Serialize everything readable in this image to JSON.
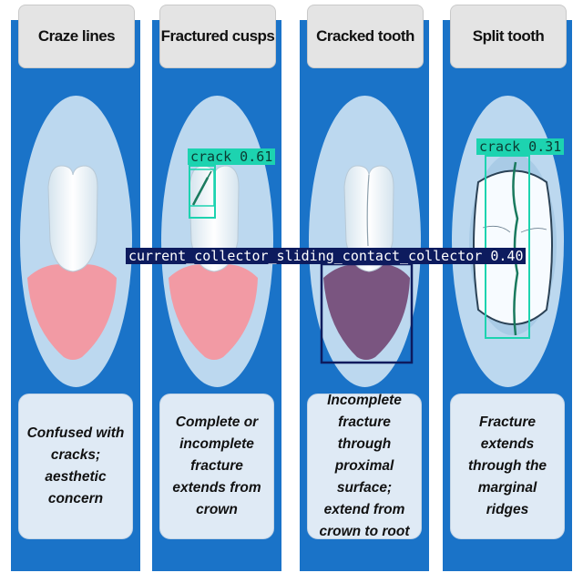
{
  "panels": [
    {
      "title": "Craze lines",
      "caption": "Confused with cracks; aesthetic concern"
    },
    {
      "title": "Fractured cusps",
      "caption": "Complete or incomplete fracture extends from crown"
    },
    {
      "title": "Cracked tooth",
      "caption": "Incomplete fracture through proximal surface; extend from crown to root"
    },
    {
      "title": "Split tooth",
      "caption": "Fracture extends through the marginal ridges"
    }
  ],
  "detections": [
    {
      "label": "crack 0.61",
      "color": "#1dd3b0"
    },
    {
      "label": "crack 0.31",
      "color": "#1dd3b0"
    },
    {
      "label": "current_collector_sliding_contact_collector 0.40",
      "color": "#0d1b5e"
    }
  ],
  "colors": {
    "panel": "#1a73c8",
    "gum": "#f29aa4",
    "gum_dark": "#7a5580",
    "crack": "#1a7a5e"
  }
}
